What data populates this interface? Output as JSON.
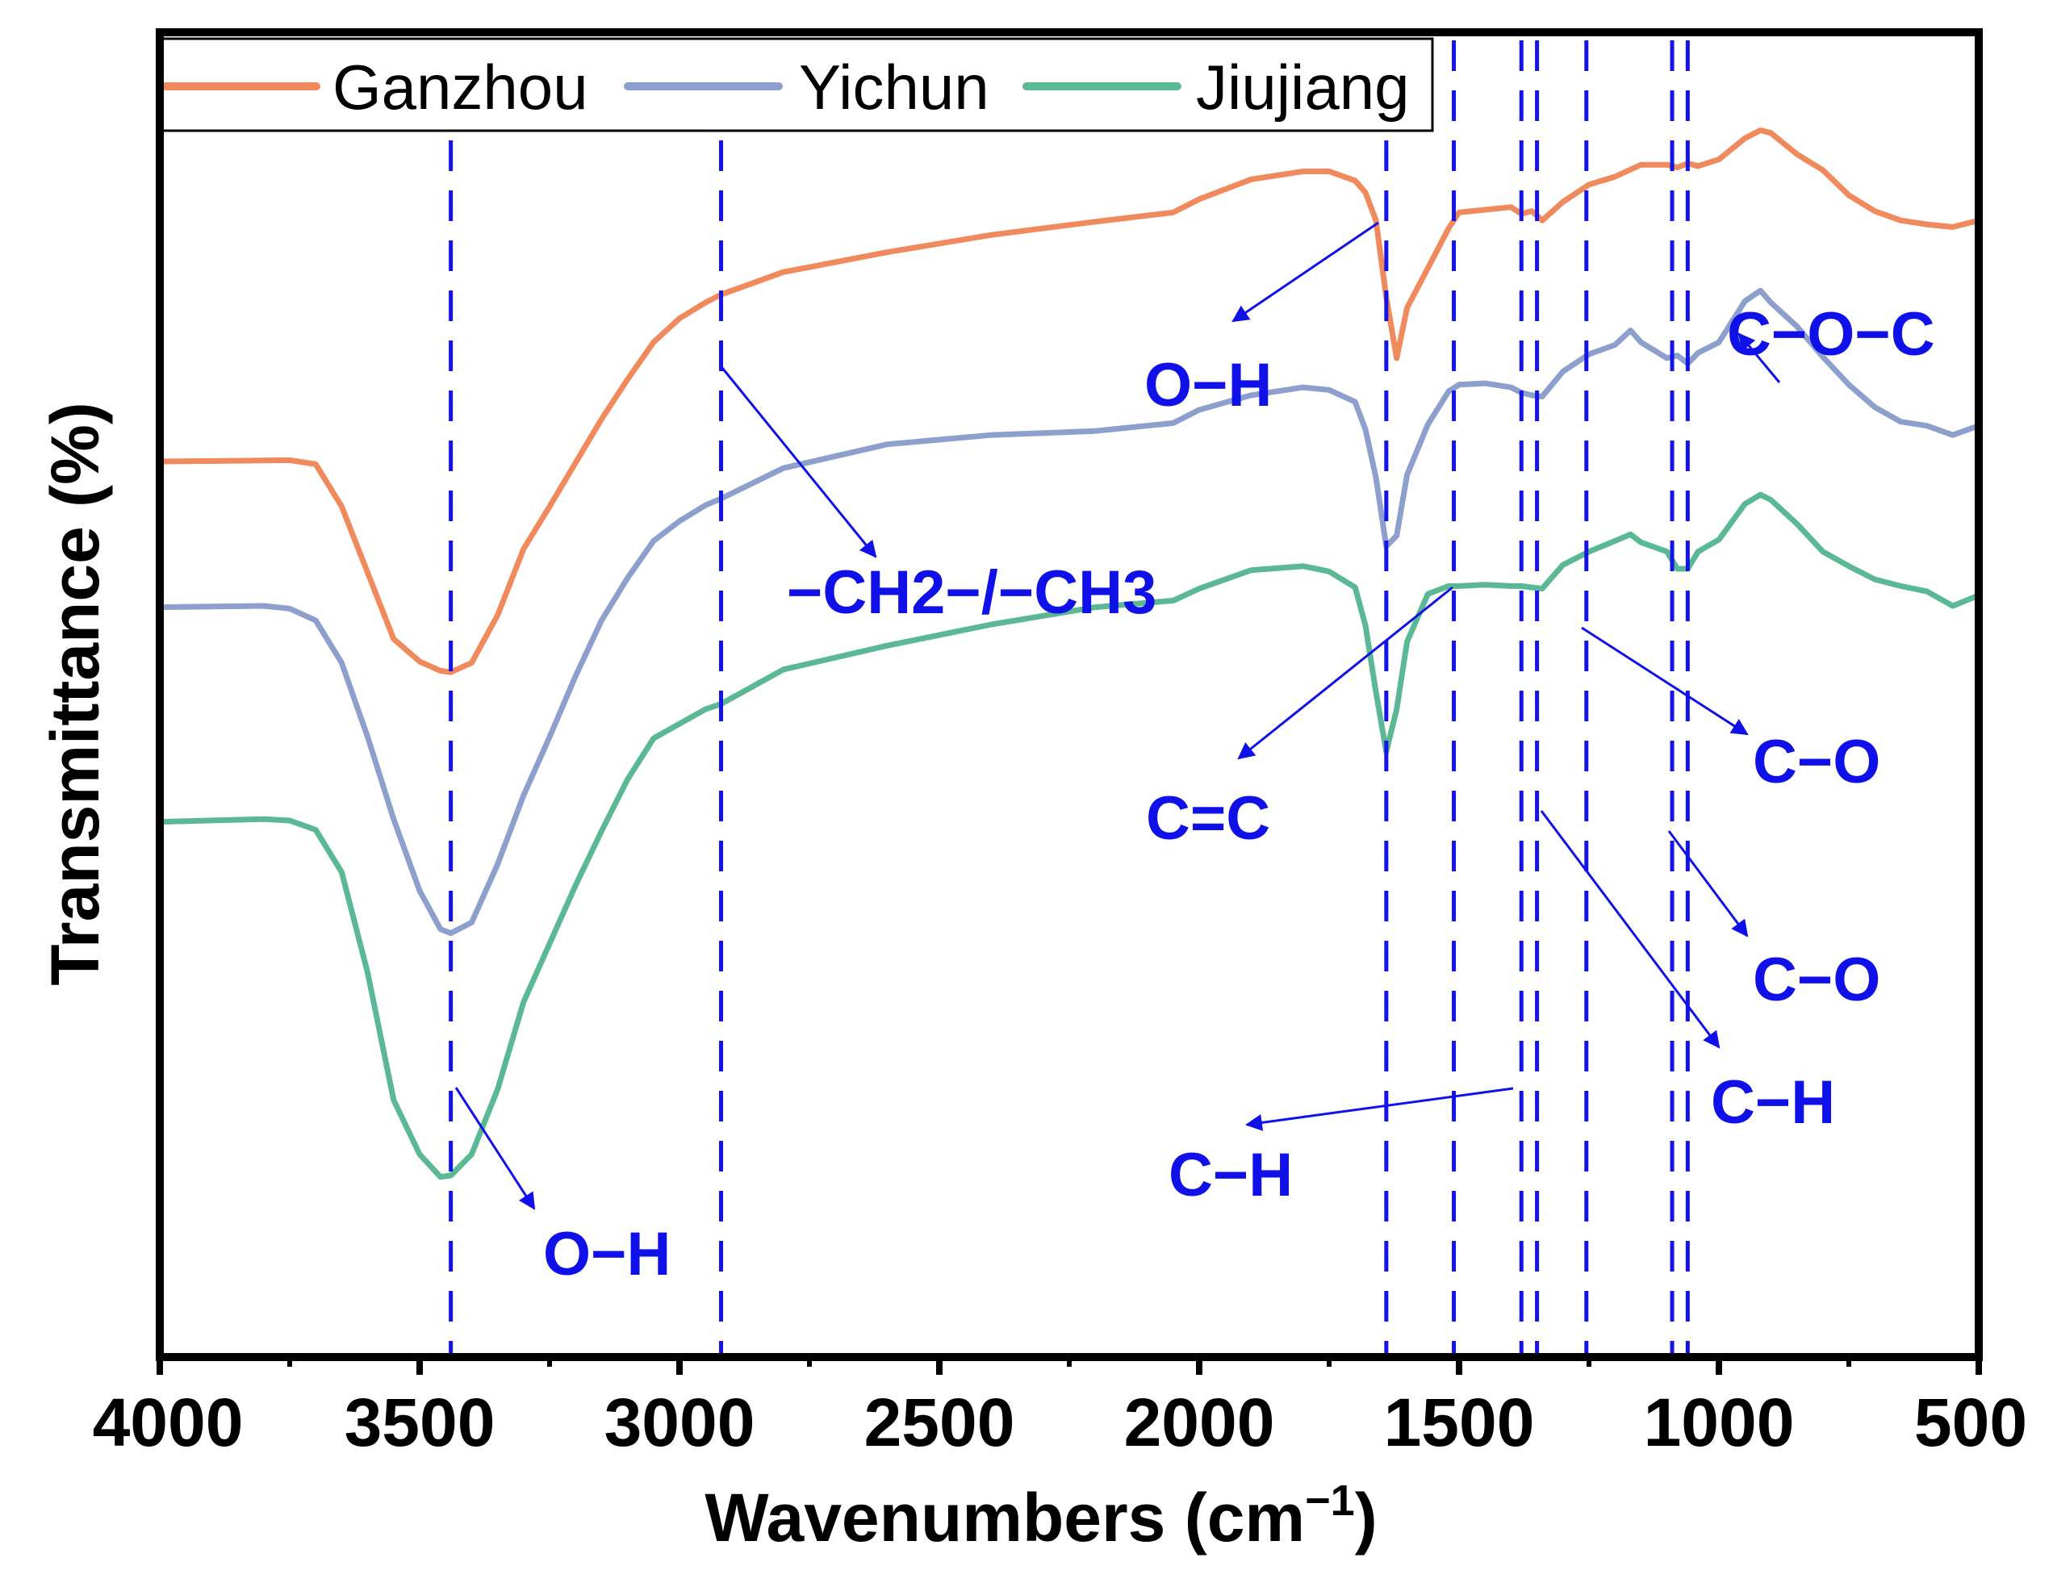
{
  "chart_data": {
    "type": "line",
    "title": "",
    "xlabel": "Wavenumbers (cm",
    "xlabel_sup": "−1",
    "xlabel_close": ")",
    "ylabel": "Transmittance (%)",
    "xlim": [
      4000,
      500
    ],
    "ylim": [
      0,
      100
    ],
    "x_reversed": true,
    "y_ticks_shown": false,
    "xticks": [
      4000,
      3500,
      3000,
      2500,
      2000,
      1500,
      1000,
      500
    ],
    "xtick_labels": [
      "4000",
      "3500",
      "3000",
      "2500",
      "2000",
      "1500",
      "1000",
      "500"
    ],
    "legend_position": "top-left",
    "series": [
      {
        "name": "Ganzhou",
        "color": "#f08a5d",
        "x": [
          4000,
          3750,
          3700,
          3650,
          3600,
          3550,
          3500,
          3460,
          3440,
          3400,
          3350,
          3300,
          3250,
          3200,
          3150,
          3100,
          3050,
          3000,
          2950,
          2920,
          2800,
          2600,
          2400,
          2200,
          2050,
          2000,
          1900,
          1800,
          1750,
          1700,
          1680,
          1660,
          1640,
          1620,
          1600,
          1560,
          1520,
          1500,
          1450,
          1400,
          1380,
          1360,
          1340,
          1300,
          1250,
          1200,
          1150,
          1100,
          1080,
          1060,
          1040,
          1000,
          950,
          920,
          900,
          850,
          800,
          750,
          700,
          650,
          600,
          550,
          500
        ],
        "y": [
          67.6,
          67.7,
          67.4,
          64.2,
          59.2,
          54.2,
          52.5,
          51.8,
          51.7,
          52.4,
          56.0,
          61.0,
          64.2,
          67.5,
          70.8,
          73.8,
          76.6,
          78.4,
          79.6,
          80.2,
          81.9,
          83.4,
          84.7,
          85.7,
          86.4,
          87.4,
          88.9,
          89.5,
          89.5,
          88.8,
          87.9,
          85.8,
          80.0,
          75.4,
          79.2,
          82.2,
          85.2,
          86.4,
          86.6,
          86.8,
          86.3,
          86.5,
          85.8,
          87.2,
          88.5,
          89.1,
          90.0,
          90.0,
          89.8,
          90.1,
          89.9,
          90.4,
          92.0,
          92.6,
          92.4,
          90.8,
          89.6,
          87.7,
          86.5,
          85.8,
          85.5,
          85.3,
          85.8
        ]
      },
      {
        "name": "Yichun",
        "color": "#8d9fcd",
        "x": [
          4000,
          3800,
          3750,
          3700,
          3650,
          3600,
          3550,
          3500,
          3460,
          3440,
          3400,
          3350,
          3300,
          3250,
          3200,
          3150,
          3100,
          3050,
          3000,
          2950,
          2920,
          2800,
          2600,
          2400,
          2200,
          2050,
          2000,
          1900,
          1800,
          1750,
          1700,
          1680,
          1660,
          1640,
          1620,
          1600,
          1560,
          1520,
          1500,
          1450,
          1400,
          1380,
          1360,
          1340,
          1300,
          1250,
          1200,
          1170,
          1150,
          1100,
          1080,
          1060,
          1040,
          1000,
          950,
          920,
          900,
          850,
          800,
          750,
          700,
          650,
          600,
          550,
          500
        ],
        "y": [
          56.6,
          56.7,
          56.5,
          55.6,
          52.4,
          46.8,
          40.6,
          35.2,
          32.3,
          32.0,
          32.8,
          37.2,
          42.4,
          46.8,
          51.4,
          55.6,
          58.8,
          61.6,
          63.1,
          64.3,
          64.8,
          67.1,
          68.9,
          69.6,
          69.9,
          70.5,
          71.5,
          72.6,
          73.2,
          73.0,
          72.1,
          70.0,
          66.4,
          61.2,
          62.0,
          66.6,
          70.4,
          72.9,
          73.4,
          73.5,
          73.2,
          72.8,
          72.6,
          72.5,
          74.4,
          75.7,
          76.4,
          77.5,
          76.6,
          75.4,
          75.6,
          75.0,
          75.8,
          76.6,
          79.7,
          80.5,
          79.6,
          77.8,
          75.5,
          73.4,
          71.7,
          70.6,
          70.3,
          69.6,
          70.3
        ]
      },
      {
        "name": "Jiujiang",
        "color": "#5bb895",
        "x": [
          4000,
          3800,
          3750,
          3700,
          3650,
          3600,
          3550,
          3500,
          3460,
          3440,
          3400,
          3350,
          3300,
          3250,
          3200,
          3150,
          3100,
          3050,
          3000,
          2950,
          2920,
          2800,
          2600,
          2400,
          2200,
          2050,
          2000,
          1900,
          1800,
          1750,
          1700,
          1680,
          1660,
          1640,
          1620,
          1600,
          1560,
          1520,
          1500,
          1450,
          1400,
          1380,
          1360,
          1340,
          1300,
          1250,
          1200,
          1170,
          1150,
          1100,
          1080,
          1060,
          1040,
          1000,
          950,
          920,
          900,
          850,
          800,
          750,
          700,
          650,
          600,
          550,
          500
        ],
        "y": [
          40.4,
          40.6,
          40.5,
          39.8,
          36.6,
          29.0,
          19.4,
          15.3,
          13.6,
          13.7,
          15.3,
          20.2,
          26.8,
          31.2,
          35.6,
          39.7,
          43.6,
          46.7,
          47.8,
          48.9,
          49.3,
          51.9,
          53.7,
          55.3,
          56.6,
          57.1,
          58.0,
          59.4,
          59.7,
          59.3,
          58.1,
          55.2,
          50.2,
          45.7,
          48.9,
          54.0,
          57.6,
          58.2,
          58.2,
          58.3,
          58.2,
          58.2,
          58.1,
          58.0,
          59.8,
          60.8,
          61.6,
          62.1,
          61.5,
          60.8,
          59.5,
          59.5,
          60.8,
          61.7,
          64.4,
          65.1,
          64.7,
          62.9,
          60.8,
          59.7,
          58.7,
          58.2,
          57.8,
          56.7,
          57.5
        ]
      }
    ],
    "marker_lines": [
      3440,
      2920,
      1640,
      1510,
      1380,
      1350,
      1255,
      1090,
      1060
    ],
    "annotations": [
      {
        "text": "O−H",
        "position": "below O−H absorption at 3440"
      },
      {
        "text": "O−H",
        "position": "left of 1640 band"
      },
      {
        "text": "−CH2−/−CH3",
        "position": "right of 2920 line"
      },
      {
        "text": "C=C",
        "position": "below-left of 1510 line"
      },
      {
        "text": "C−O−C",
        "position": "top-right"
      },
      {
        "text": "C−O",
        "position": "right of 1255 line"
      },
      {
        "text": "C−O",
        "position": "right of 1090 line"
      },
      {
        "text": "C−H",
        "position": "below 1350 line"
      },
      {
        "text": "C−H",
        "position": "left of 1380 line"
      }
    ],
    "colors": {
      "marker_line": "#1414e6",
      "annotation": "#1010e8",
      "axis": "#000000"
    }
  }
}
